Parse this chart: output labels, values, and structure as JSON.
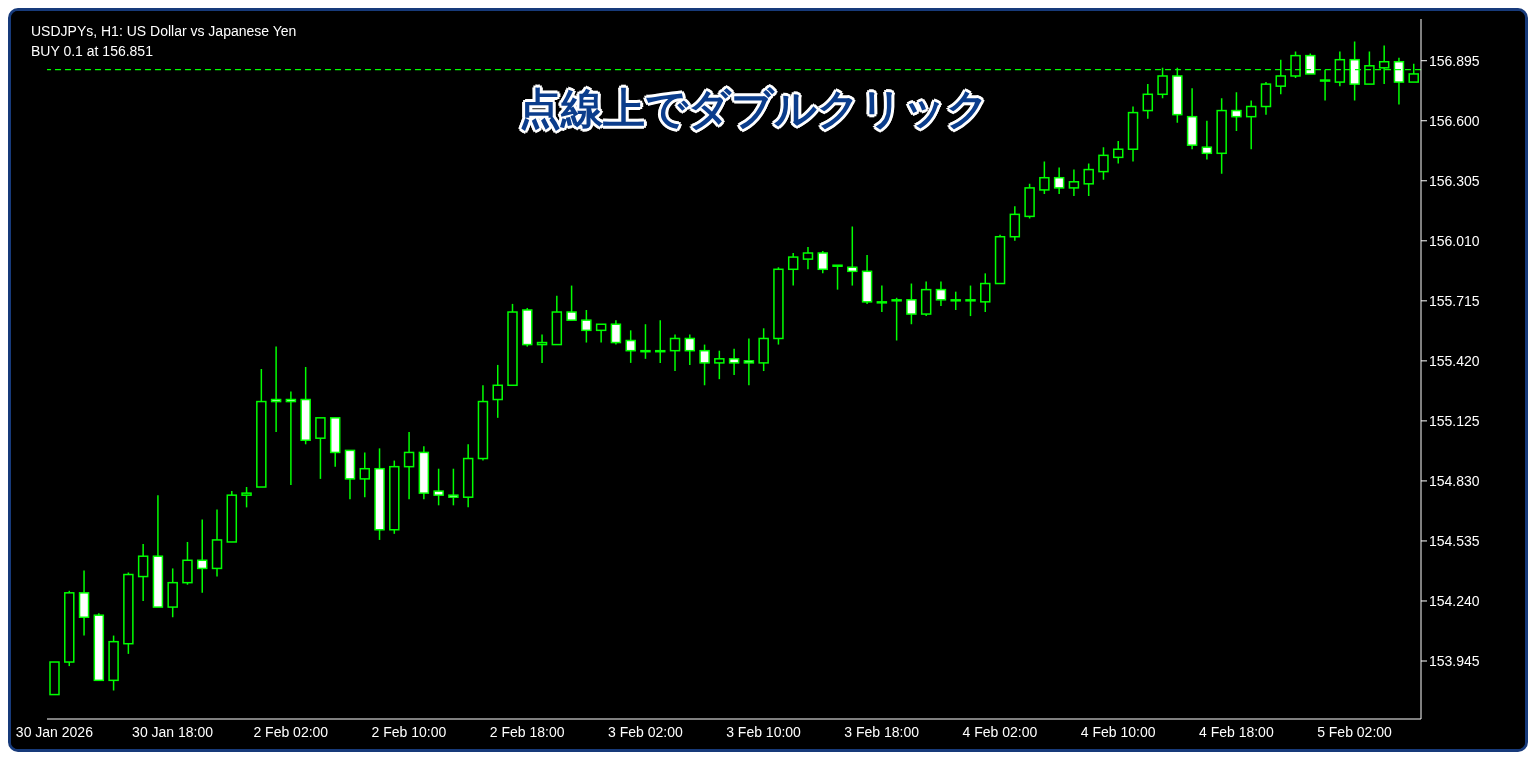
{
  "chart_data": {
    "type": "candlestick",
    "title": "USDJPYs, H1:  US Dollar vs Japanese Yen",
    "annotations": [
      "点線上でダブルクリック"
    ],
    "categories": [
      "30 Jan 2026",
      null,
      null,
      null,
      null,
      null,
      null,
      null,
      "30 Jan 18:00",
      null,
      null,
      null,
      null,
      null,
      null,
      null,
      "2 Feb 02:00",
      null,
      null,
      null,
      null,
      null,
      null,
      null,
      "2 Feb 10:00",
      null,
      null,
      null,
      null,
      null,
      null,
      null,
      "2 Feb 18:00",
      null,
      null,
      null,
      null,
      null,
      null,
      null,
      "3 Feb 02:00",
      null,
      null,
      null,
      null,
      null,
      null,
      null,
      "3 Feb 10:00",
      null,
      null,
      null,
      null,
      null,
      null,
      null,
      "3 Feb 18:00",
      null,
      null,
      null,
      null,
      null,
      null,
      null,
      "4 Feb 02:00",
      null,
      null,
      null,
      null,
      null,
      null,
      null,
      "4 Feb 10:00",
      null,
      null,
      null,
      null,
      null,
      null,
      null,
      "4 Feb 18:00",
      null,
      null,
      null,
      null,
      null,
      null,
      null,
      "5 Feb 02:00",
      null,
      null,
      null,
      null
    ],
    "series": [
      {
        "color": "#00ff00",
        "ohlc": [
          [
            153.78,
            153.94,
            153.78,
            153.94
          ],
          [
            153.94,
            154.29,
            153.92,
            154.28
          ],
          [
            154.28,
            154.39,
            154.07,
            154.16
          ],
          [
            154.17,
            154.18,
            153.85,
            153.85
          ],
          [
            153.85,
            154.07,
            153.8,
            154.04
          ],
          [
            154.03,
            154.38,
            153.98,
            154.37
          ],
          [
            154.36,
            154.52,
            154.24,
            154.46
          ],
          [
            154.46,
            154.76,
            154.21,
            154.21
          ],
          [
            154.21,
            154.4,
            154.16,
            154.33
          ],
          [
            154.33,
            154.53,
            154.32,
            154.44
          ],
          [
            154.44,
            154.64,
            154.28,
            154.4
          ],
          [
            154.4,
            154.69,
            154.36,
            154.54
          ],
          [
            154.53,
            154.78,
            154.53,
            154.76
          ],
          [
            154.76,
            154.8,
            154.7,
            154.77
          ],
          [
            154.8,
            155.38,
            154.8,
            155.22
          ],
          [
            155.23,
            155.49,
            155.07,
            155.22
          ],
          [
            155.23,
            155.27,
            154.81,
            155.22
          ],
          [
            155.23,
            155.39,
            155.01,
            155.03
          ],
          [
            155.04,
            155.14,
            154.84,
            155.14
          ],
          [
            155.14,
            155.14,
            154.9,
            154.97
          ],
          [
            154.98,
            154.98,
            154.74,
            154.84
          ],
          [
            154.84,
            154.97,
            154.75,
            154.89
          ],
          [
            154.89,
            154.99,
            154.54,
            154.59
          ],
          [
            154.59,
            154.93,
            154.57,
            154.9
          ],
          [
            154.9,
            155.07,
            154.74,
            154.97
          ],
          [
            154.97,
            155.0,
            154.74,
            154.77
          ],
          [
            154.78,
            154.89,
            154.71,
            154.76
          ],
          [
            154.76,
            154.89,
            154.71,
            154.75
          ],
          [
            154.75,
            155.01,
            154.7,
            154.94
          ],
          [
            154.94,
            155.3,
            154.93,
            155.22
          ],
          [
            155.23,
            155.4,
            155.14,
            155.3
          ],
          [
            155.3,
            155.7,
            155.3,
            155.66
          ],
          [
            155.67,
            155.68,
            155.49,
            155.5
          ],
          [
            155.5,
            155.55,
            155.41,
            155.51
          ],
          [
            155.5,
            155.74,
            155.5,
            155.66
          ],
          [
            155.66,
            155.79,
            155.62,
            155.62
          ],
          [
            155.62,
            155.67,
            155.51,
            155.57
          ],
          [
            155.57,
            155.6,
            155.51,
            155.6
          ],
          [
            155.6,
            155.62,
            155.5,
            155.51
          ],
          [
            155.52,
            155.57,
            155.41,
            155.47
          ],
          [
            155.47,
            155.6,
            155.43,
            155.47
          ],
          [
            155.47,
            155.62,
            155.41,
            155.47
          ],
          [
            155.47,
            155.55,
            155.37,
            155.53
          ],
          [
            155.53,
            155.55,
            155.4,
            155.47
          ],
          [
            155.47,
            155.5,
            155.3,
            155.41
          ],
          [
            155.41,
            155.47,
            155.33,
            155.43
          ],
          [
            155.43,
            155.48,
            155.35,
            155.41
          ],
          [
            155.42,
            155.53,
            155.3,
            155.41
          ],
          [
            155.41,
            155.58,
            155.37,
            155.53
          ],
          [
            155.53,
            155.88,
            155.5,
            155.87
          ],
          [
            155.87,
            155.95,
            155.79,
            155.93
          ],
          [
            155.92,
            155.98,
            155.87,
            155.95
          ],
          [
            155.95,
            155.96,
            155.85,
            155.87
          ],
          [
            155.89,
            155.89,
            155.77,
            155.89
          ],
          [
            155.88,
            156.08,
            155.79,
            155.86
          ],
          [
            155.86,
            155.94,
            155.7,
            155.71
          ],
          [
            155.71,
            155.79,
            155.66,
            155.71
          ],
          [
            155.72,
            155.73,
            155.52,
            155.72
          ],
          [
            155.72,
            155.8,
            155.6,
            155.65
          ],
          [
            155.65,
            155.81,
            155.64,
            155.77
          ],
          [
            155.77,
            155.81,
            155.69,
            155.72
          ],
          [
            155.72,
            155.76,
            155.67,
            155.72
          ],
          [
            155.72,
            155.79,
            155.64,
            155.72
          ],
          [
            155.71,
            155.85,
            155.66,
            155.8
          ],
          [
            155.8,
            156.04,
            155.8,
            156.03
          ],
          [
            156.03,
            156.18,
            156.01,
            156.14
          ],
          [
            156.13,
            156.29,
            156.12,
            156.27
          ],
          [
            156.26,
            156.4,
            156.24,
            156.32
          ],
          [
            156.32,
            156.37,
            156.24,
            156.27
          ],
          [
            156.27,
            156.36,
            156.23,
            156.3
          ],
          [
            156.29,
            156.39,
            156.23,
            156.36
          ],
          [
            156.35,
            156.47,
            156.31,
            156.43
          ],
          [
            156.42,
            156.5,
            156.39,
            156.46
          ],
          [
            156.46,
            156.67,
            156.4,
            156.64
          ],
          [
            156.65,
            156.78,
            156.61,
            156.73
          ],
          [
            156.73,
            156.86,
            156.71,
            156.82
          ],
          [
            156.82,
            156.86,
            156.59,
            156.63
          ],
          [
            156.62,
            156.76,
            156.46,
            156.48
          ],
          [
            156.47,
            156.6,
            156.41,
            156.44
          ],
          [
            156.44,
            156.71,
            156.34,
            156.65
          ],
          [
            156.65,
            156.74,
            156.55,
            156.62
          ],
          [
            156.62,
            156.7,
            156.46,
            156.67
          ],
          [
            156.67,
            156.79,
            156.63,
            156.78
          ],
          [
            156.77,
            156.9,
            156.73,
            156.82
          ],
          [
            156.82,
            156.94,
            156.81,
            156.92
          ],
          [
            156.92,
            156.93,
            156.83,
            156.83
          ],
          [
            156.8,
            156.85,
            156.7,
            156.8
          ],
          [
            156.79,
            156.94,
            156.77,
            156.9
          ],
          [
            156.9,
            156.99,
            156.7,
            156.78
          ],
          [
            156.78,
            156.94,
            156.78,
            156.87
          ],
          [
            156.86,
            156.97,
            156.78,
            156.89
          ],
          [
            156.89,
            156.91,
            156.68,
            156.79
          ],
          [
            156.79,
            156.88,
            156.79,
            156.83
          ]
        ]
      }
    ],
    "ylim": [
      153.66,
      157.1
    ],
    "yticks": [
      {
        "value": 153.945,
        "label": "153.945"
      },
      {
        "value": 154.24,
        "label": "154.240"
      },
      {
        "value": 154.535,
        "label": "154.535"
      },
      {
        "value": 154.83,
        "label": "154.830"
      },
      {
        "value": 155.125,
        "label": "155.125"
      },
      {
        "value": 155.42,
        "label": "155.420"
      },
      {
        "value": 155.715,
        "label": "155.715"
      },
      {
        "value": 156.01,
        "label": "156.010"
      },
      {
        "value": 156.305,
        "label": "156.305"
      },
      {
        "value": 156.6,
        "label": "156.600"
      },
      {
        "value": 156.895,
        "label": "156.895"
      }
    ],
    "ref_lines": [
      {
        "axis": "y",
        "value": 156.851,
        "label": "BUY 0.1 at 156.851",
        "color": "#00ff00",
        "line_style": "dashed"
      }
    ],
    "tick_labels": true
  }
}
